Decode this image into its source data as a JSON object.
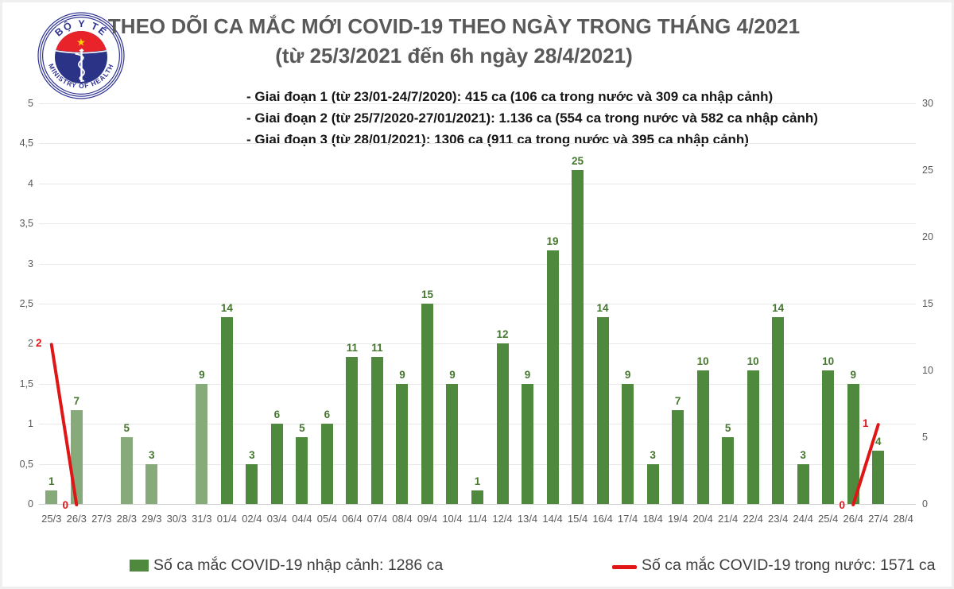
{
  "logo": {
    "top_text": "BỘ Y TẾ",
    "bottom_text": "MINISTRY OF HEALTH"
  },
  "title": {
    "line1": "THEO DÕI CA MẮC MỚI COVID-19 THEO NGÀY TRONG THÁNG 4/2021",
    "line2": "(từ 25/3/2021 đến 6h ngày 28/4/2021)"
  },
  "annotations": {
    "line1": "- Giai đoạn 1 (từ 23/01-24/7/2020): 415 ca (106 ca trong nước và 309 ca nhập cảnh)",
    "line2": "- Giai đoạn 2 (từ 25/7/2020-27/01/2021): 1.136 ca (554 ca trong nước và 582 ca nhập cảnh)",
    "line3": "- Giai đoạn 3 (từ 28/01/2021): 1306 ca (911 ca trong nước và 395 ca nhập cảnh)"
  },
  "chart_data": {
    "type": "bar",
    "categories": [
      "25/3",
      "26/3",
      "27/3",
      "28/3",
      "29/3",
      "30/3",
      "31/3",
      "01/4",
      "02/4",
      "03/4",
      "04/4",
      "05/4",
      "06/4",
      "07/4",
      "08/4",
      "09/4",
      "10/4",
      "11/4",
      "12/4",
      "13/4",
      "14/4",
      "15/4",
      "16/4",
      "17/4",
      "18/4",
      "19/4",
      "20/4",
      "21/4",
      "22/4",
      "23/4",
      "24/4",
      "25/4",
      "26/4",
      "27/4",
      "28/4"
    ],
    "series": [
      {
        "name": "Số ca mắc COVID-19 nhập cảnh",
        "type": "bar",
        "axis": "right",
        "values": [
          1,
          7,
          null,
          5,
          3,
          null,
          9,
          14,
          3,
          6,
          5,
          6,
          11,
          11,
          9,
          15,
          9,
          1,
          12,
          9,
          19,
          25,
          14,
          9,
          3,
          7,
          10,
          5,
          10,
          14,
          3,
          10,
          9,
          4,
          null
        ]
      },
      {
        "name": "Số ca mắc COVID-19 trong nước",
        "type": "line",
        "axis": "left",
        "values": [
          2,
          0,
          null,
          null,
          null,
          null,
          null,
          null,
          null,
          null,
          null,
          null,
          null,
          null,
          null,
          null,
          null,
          null,
          null,
          null,
          null,
          null,
          null,
          null,
          null,
          null,
          null,
          null,
          null,
          null,
          null,
          null,
          0,
          1,
          null
        ]
      }
    ],
    "left_axis": {
      "min": 0,
      "max": 5,
      "step": 0.5,
      "tick_labels": [
        "0",
        "0,5",
        "1",
        "1,5",
        "2",
        "2,5",
        "3",
        "3,5",
        "4",
        "4,5",
        "5"
      ]
    },
    "right_axis": {
      "min": 0,
      "max": 30,
      "step": 5,
      "tick_labels": [
        "0",
        "5",
        "10",
        "15",
        "20",
        "25",
        "30"
      ]
    },
    "grid": true,
    "legend_position": "bottom",
    "bar_style": {
      "light_color": "#87aa7a",
      "dark_color": "#4e893d",
      "light_through_index": 6
    },
    "line_style": {
      "color": "#e01616",
      "width": 4
    },
    "label_colors": {
      "bar_labels": "#45772f",
      "line_labels": "#e01616"
    }
  },
  "legend": {
    "bar_label": "Số ca mắc COVID-19 nhập cảnh: 1286 ca",
    "line_label": "Số ca mắc COVID-19 trong nước: 1571 ca",
    "bar_color": "#4e893d",
    "line_color": "#e01616"
  },
  "colors": {
    "title": "#595959",
    "axis_text": "#595959",
    "logo_blue": "#2d3192",
    "logo_navy": "#2b3386",
    "logo_red": "#e8242a",
    "logo_star": "#ffd500"
  }
}
